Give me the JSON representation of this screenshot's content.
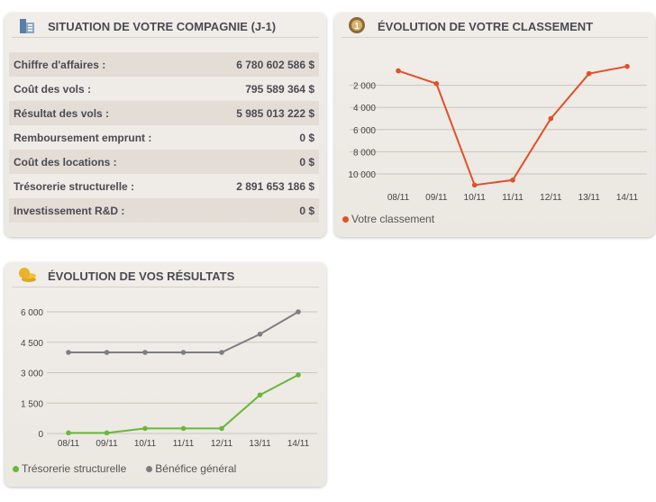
{
  "company": {
    "title": "SITUATION DE VOTRE COMPAGNIE (J-1)",
    "icon": "building-icon",
    "rows": [
      {
        "label": "Chiffre d'affaires :",
        "value": "6 780 602 586 $"
      },
      {
        "label": "Coût des vols :",
        "value": "795 589 364 $"
      },
      {
        "label": "Résultat des vols :",
        "value": "5 985 013 222 $"
      },
      {
        "label": "Remboursement emprunt :",
        "value": "0 $"
      },
      {
        "label": "Coût des locations :",
        "value": "0 $"
      },
      {
        "label": "Trésorerie structurelle :",
        "value": "2 891 653 186 $"
      },
      {
        "label": "Investissement R&D :",
        "value": "0 $"
      }
    ]
  },
  "ranking": {
    "title": "ÉVOLUTION DE VOTRE CLASSEMENT",
    "icon": "medal-icon"
  },
  "results": {
    "title": "ÉVOLUTION DE VOS RÉSULTATS",
    "icon": "coins-icon"
  },
  "chart_data": [
    {
      "type": "line",
      "title": "ÉVOLUTION DE VOTRE CLASSEMENT",
      "categories": [
        "08/11",
        "09/11",
        "10/11",
        "11/11",
        "12/11",
        "13/11",
        "14/11"
      ],
      "yticks": [
        2000,
        4000,
        6000,
        8000,
        10000
      ],
      "ytick_labels": [
        "2 000",
        "4 000",
        "6 000",
        "8 000",
        "10 000"
      ],
      "ylim": [
        0,
        11300
      ],
      "reversed": true,
      "legend": "bottom-left",
      "series": [
        {
          "name": "Votre classement",
          "color": "#e0502a",
          "values": [
            700,
            1850,
            11000,
            10550,
            5000,
            950,
            300
          ]
        }
      ]
    },
    {
      "type": "line",
      "title": "ÉVOLUTION DE VOS RÉSULTATS",
      "categories": [
        "08/11",
        "09/11",
        "10/11",
        "11/11",
        "12/11",
        "13/11",
        "14/11"
      ],
      "yticks": [
        0,
        1500,
        3000,
        4500,
        6000
      ],
      "ytick_labels": [
        "0",
        "1 500",
        "3 000",
        "4 500",
        "6 000"
      ],
      "ylim": [
        0,
        6000
      ],
      "reversed": false,
      "legend": "bottom-left",
      "series": [
        {
          "name": "Trésorerie structurelle",
          "color": "#6ab73a",
          "values": [
            30,
            30,
            250,
            250,
            250,
            1900,
            2890
          ]
        },
        {
          "name": "Bénéfice général",
          "color": "#7d7d85",
          "values": [
            4000,
            4000,
            4000,
            4000,
            4000,
            4900,
            6000
          ]
        }
      ]
    }
  ]
}
